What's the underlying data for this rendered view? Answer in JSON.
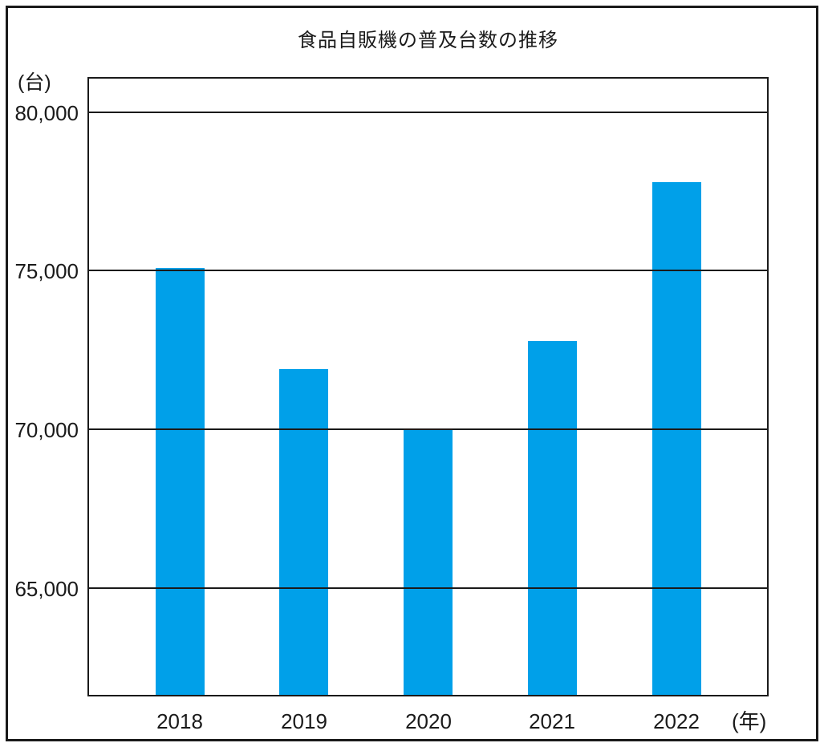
{
  "title": "食品自販機の普及台数の推移",
  "y_unit_label": "(台)",
  "x_unit_label": "(年)",
  "chart_data": {
    "type": "bar",
    "title": "食品自販機の普及台数の推移",
    "categories": [
      "2018",
      "2019",
      "2020",
      "2021",
      "2022"
    ],
    "values": [
      75100,
      71900,
      70000,
      72800,
      77800
    ],
    "xlabel": "(年)",
    "ylabel": "(台)",
    "ylim": [
      61600,
      81100
    ],
    "yticks": [
      80000,
      75000,
      70000,
      65000
    ],
    "ytick_labels": [
      "80,000",
      "75,000",
      "70,000",
      "65,000"
    ],
    "grid": true,
    "gridlines_over_bars": true,
    "legend": false,
    "bar_color": "#00A0E9",
    "line_color": "#1A1A1A",
    "background_color": "#FFFFFF"
  }
}
